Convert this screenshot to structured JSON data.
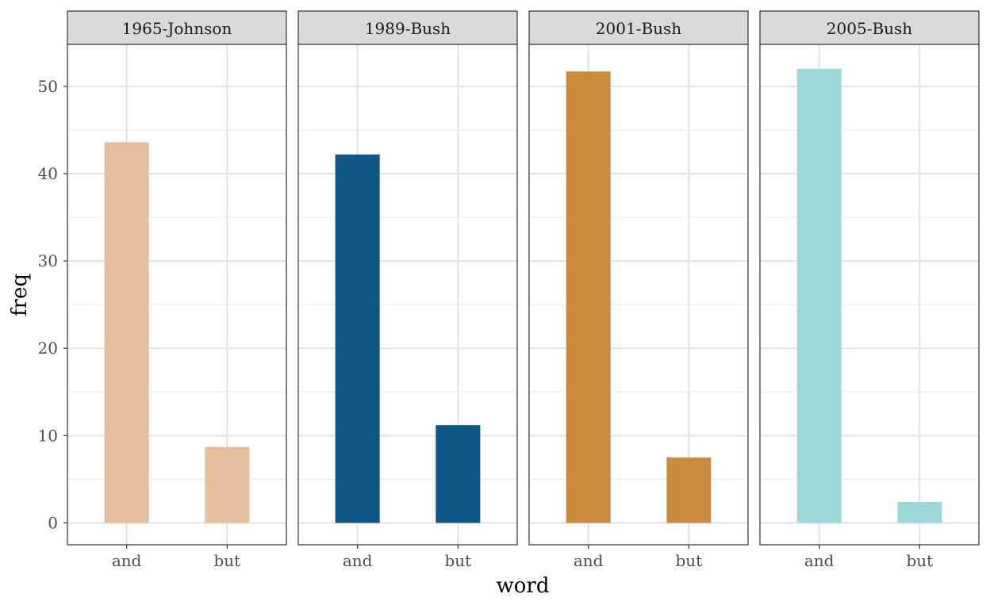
{
  "chart_data": {
    "type": "bar",
    "xlabel": "word",
    "ylabel": "freq",
    "ylim": [
      -2.5,
      54.8
    ],
    "yticks": [
      0,
      10,
      20,
      30,
      40,
      50
    ],
    "categories": [
      "and",
      "but"
    ],
    "grid": true,
    "legend": "none",
    "panels": [
      {
        "name": "1965-Johnson",
        "color": "#E5BE9E",
        "values": [
          43.6,
          8.7
        ]
      },
      {
        "name": "1989-Bush",
        "color": "#0E5787",
        "values": [
          42.2,
          11.2
        ]
      },
      {
        "name": "2001-Bush",
        "color": "#C98B3E",
        "values": [
          51.7,
          7.5
        ]
      },
      {
        "name": "2005-Bush",
        "color": "#9DD7D7",
        "values": [
          52.0,
          2.4
        ]
      }
    ]
  }
}
